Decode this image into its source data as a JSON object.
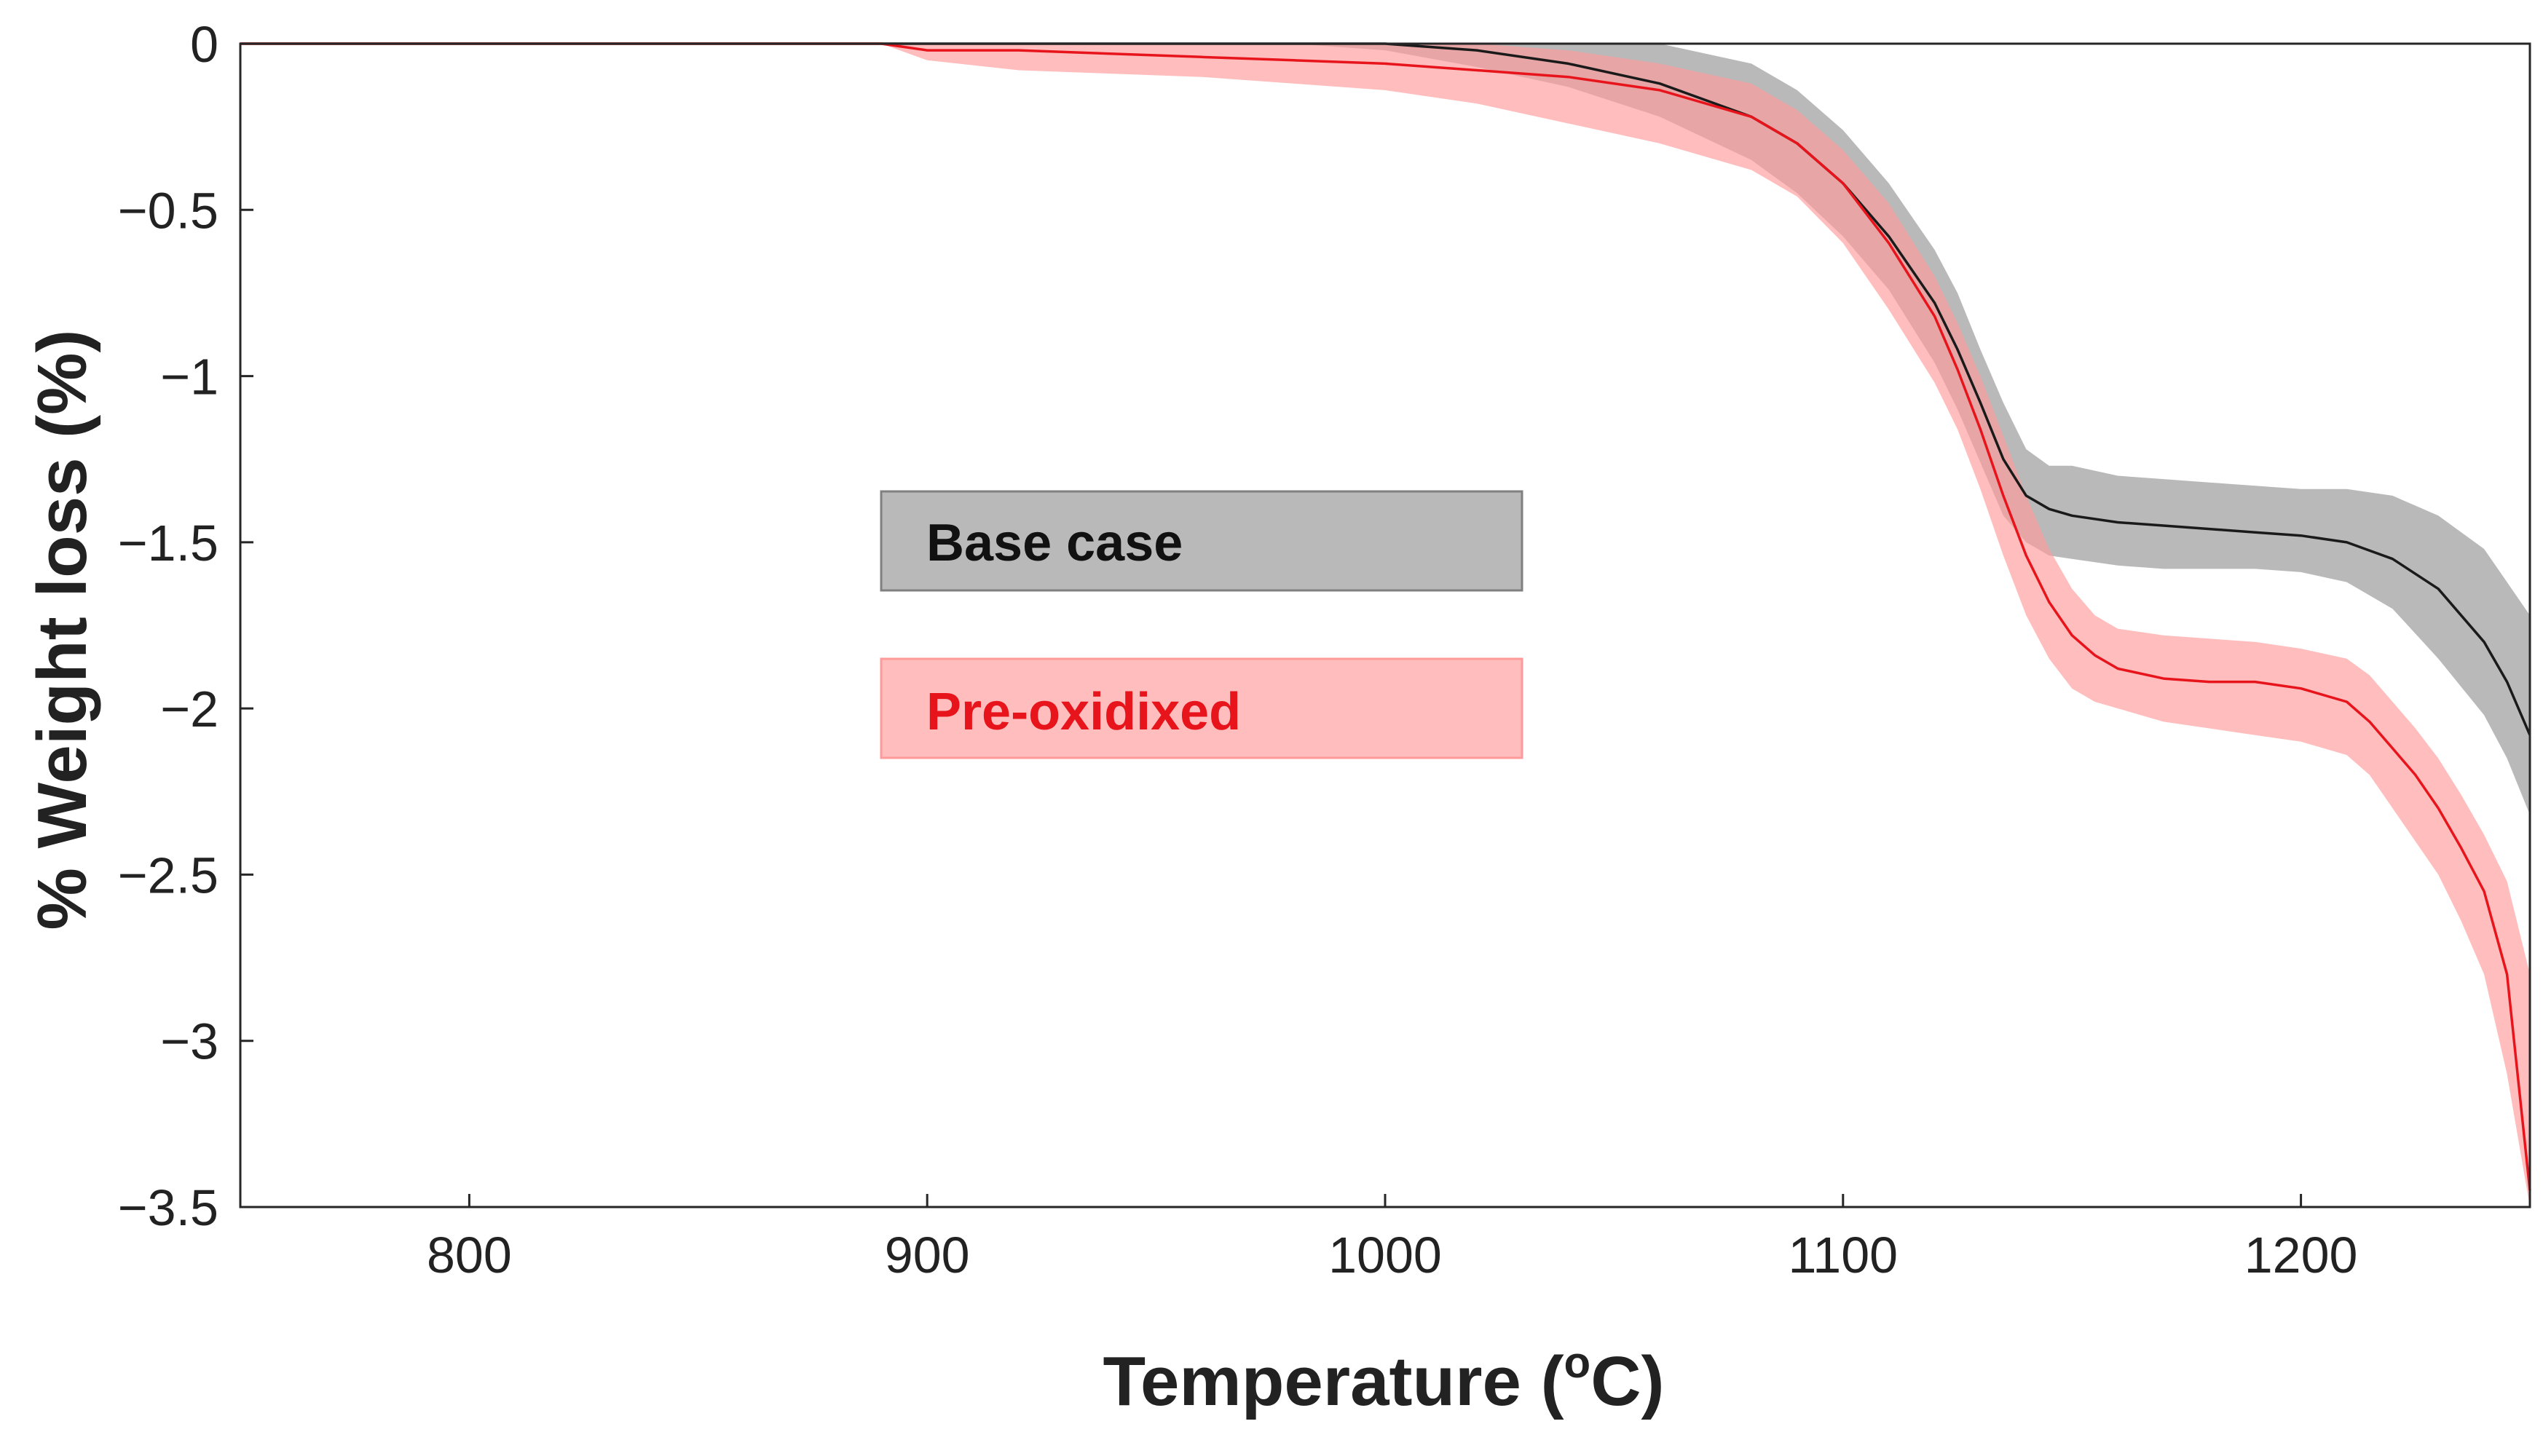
{
  "chart_data": {
    "type": "area",
    "title": "",
    "xlabel": "Temperature (",
    "xlabel_sup": "o",
    "xlabel_unit": "C)",
    "ylabel": "% Weight loss (%)",
    "xlim": [
      750,
      1250
    ],
    "ylim": [
      -3.5,
      0
    ],
    "x_ticks": [
      800,
      900,
      1000,
      1100,
      1200
    ],
    "y_ticks": [
      0,
      -0.5,
      -1,
      -1.5,
      -2,
      -2.5,
      -3,
      -3.5
    ],
    "y_tick_labels": [
      "0",
      "−0.5",
      "−1",
      "−1.5",
      "−2",
      "−2.5",
      "−3",
      "−3.5"
    ],
    "grid": false,
    "legend_position": "center-left",
    "series": [
      {
        "name": "Base case",
        "line_color": "#1a1a1a",
        "band_color": "#808080",
        "band_opacity": 0.55,
        "x": [
          750,
          980,
          1000,
          1020,
          1040,
          1060,
          1080,
          1090,
          1100,
          1110,
          1120,
          1125,
          1130,
          1135,
          1140,
          1145,
          1150,
          1160,
          1170,
          1180,
          1190,
          1200,
          1210,
          1220,
          1230,
          1240,
          1245,
          1250
        ],
        "mean": [
          0,
          0,
          0,
          -0.02,
          -0.06,
          -0.12,
          -0.22,
          -0.3,
          -0.42,
          -0.58,
          -0.78,
          -0.92,
          -1.08,
          -1.25,
          -1.36,
          -1.4,
          -1.42,
          -1.44,
          -1.45,
          -1.46,
          -1.47,
          -1.48,
          -1.5,
          -1.55,
          -1.64,
          -1.8,
          -1.92,
          -2.08
        ],
        "upper": [
          0,
          0,
          0,
          0,
          0,
          0,
          -0.06,
          -0.14,
          -0.26,
          -0.42,
          -0.62,
          -0.75,
          -0.92,
          -1.08,
          -1.22,
          -1.27,
          -1.27,
          -1.3,
          -1.31,
          -1.32,
          -1.33,
          -1.34,
          -1.34,
          -1.36,
          -1.42,
          -1.52,
          -1.62,
          -1.72
        ],
        "lower": [
          0,
          0,
          -0.02,
          -0.07,
          -0.13,
          -0.22,
          -0.35,
          -0.45,
          -0.58,
          -0.74,
          -0.96,
          -1.1,
          -1.26,
          -1.42,
          -1.5,
          -1.54,
          -1.55,
          -1.57,
          -1.58,
          -1.58,
          -1.58,
          -1.59,
          -1.62,
          -1.7,
          -1.85,
          -2.02,
          -2.15,
          -2.32
        ]
      },
      {
        "name": "Pre-oxidixed",
        "line_color": "#e8141c",
        "band_color": "#ff9a9a",
        "band_opacity": 0.65,
        "x": [
          750,
          890,
          900,
          920,
          940,
          960,
          980,
          1000,
          1020,
          1040,
          1060,
          1080,
          1090,
          1100,
          1110,
          1120,
          1125,
          1130,
          1135,
          1140,
          1145,
          1150,
          1155,
          1160,
          1170,
          1180,
          1190,
          1200,
          1210,
          1215,
          1220,
          1225,
          1230,
          1235,
          1240,
          1245,
          1250
        ],
        "mean": [
          0,
          0,
          -0.02,
          -0.02,
          -0.03,
          -0.04,
          -0.05,
          -0.06,
          -0.08,
          -0.1,
          -0.14,
          -0.22,
          -0.3,
          -0.42,
          -0.6,
          -0.82,
          -0.98,
          -1.16,
          -1.36,
          -1.54,
          -1.68,
          -1.78,
          -1.84,
          -1.88,
          -1.91,
          -1.92,
          -1.92,
          -1.94,
          -1.98,
          -2.04,
          -2.12,
          -2.2,
          -2.3,
          -2.42,
          -2.55,
          -2.8,
          -3.45
        ],
        "upper": [
          0,
          0,
          0,
          0,
          0,
          0,
          0,
          0,
          0,
          -0.02,
          -0.06,
          -0.12,
          -0.2,
          -0.32,
          -0.48,
          -0.7,
          -0.84,
          -1.0,
          -1.18,
          -1.36,
          -1.52,
          -1.64,
          -1.72,
          -1.76,
          -1.78,
          -1.79,
          -1.8,
          -1.82,
          -1.85,
          -1.9,
          -1.98,
          -2.06,
          -2.15,
          -2.26,
          -2.38,
          -2.52,
          -2.8
        ],
        "lower": [
          0,
          0,
          -0.05,
          -0.08,
          -0.09,
          -0.1,
          -0.12,
          -0.14,
          -0.18,
          -0.24,
          -0.3,
          -0.38,
          -0.46,
          -0.6,
          -0.8,
          -1.02,
          -1.16,
          -1.34,
          -1.54,
          -1.72,
          -1.85,
          -1.94,
          -1.98,
          -2.0,
          -2.04,
          -2.06,
          -2.08,
          -2.1,
          -2.14,
          -2.2,
          -2.3,
          -2.4,
          -2.5,
          -2.64,
          -2.8,
          -3.1,
          -3.5
        ]
      }
    ]
  }
}
